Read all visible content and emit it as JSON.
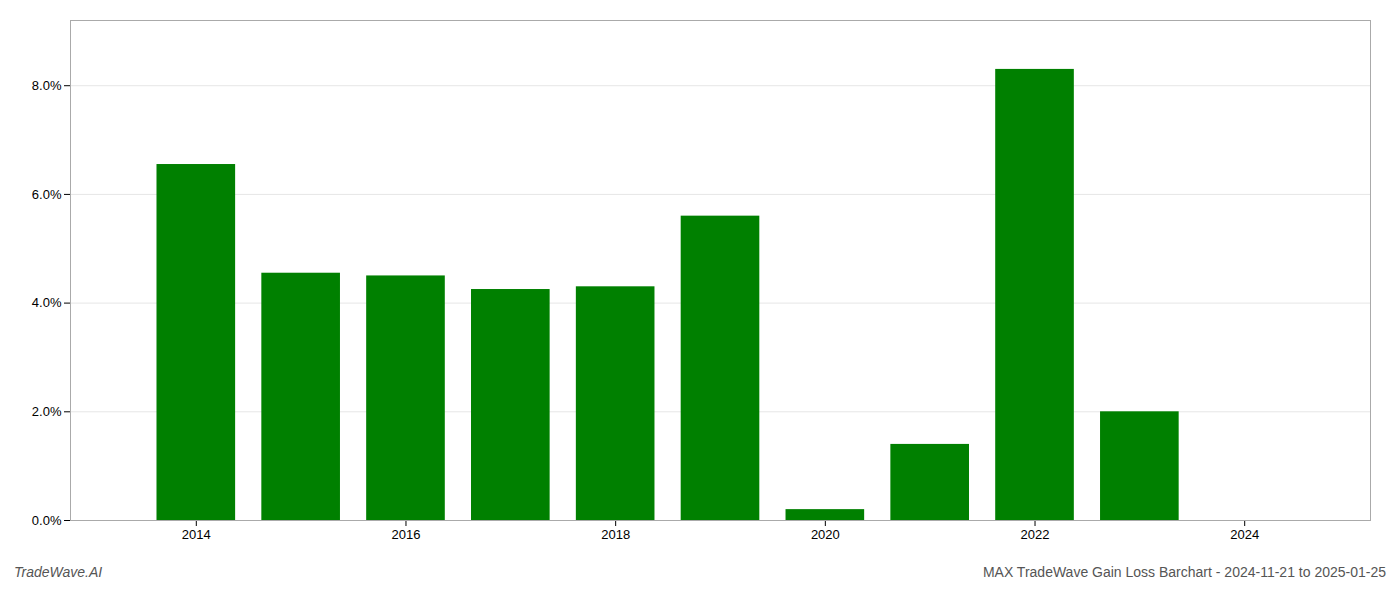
{
  "chart_data": {
    "type": "bar",
    "title": "MAX TradeWave Gain Loss Barchart - 2024-11-21 to 2025-01-25",
    "annotations": [
      "TradeWave.AI"
    ],
    "x": [
      2014,
      2015,
      2016,
      2017,
      2018,
      2019,
      2020,
      2021,
      2022,
      2023
    ],
    "values": [
      0.0655,
      0.0455,
      0.045,
      0.0425,
      0.043,
      0.056,
      0.002,
      0.014,
      0.083,
      0.02
    ],
    "color": "#008000",
    "xlim": [
      2012.8,
      2025.2
    ],
    "xticks": [
      2014,
      2016,
      2018,
      2020,
      2022,
      2024
    ],
    "ylim": [
      0,
      0.092
    ],
    "yticks": [
      {
        "value": 0.0,
        "label": "0.0%"
      },
      {
        "value": 0.02,
        "label": "2.0%"
      },
      {
        "value": 0.04,
        "label": "4.0%"
      },
      {
        "value": 0.06,
        "label": "6.0%"
      },
      {
        "value": 0.08,
        "label": "8.0%"
      }
    ],
    "grid": true
  }
}
